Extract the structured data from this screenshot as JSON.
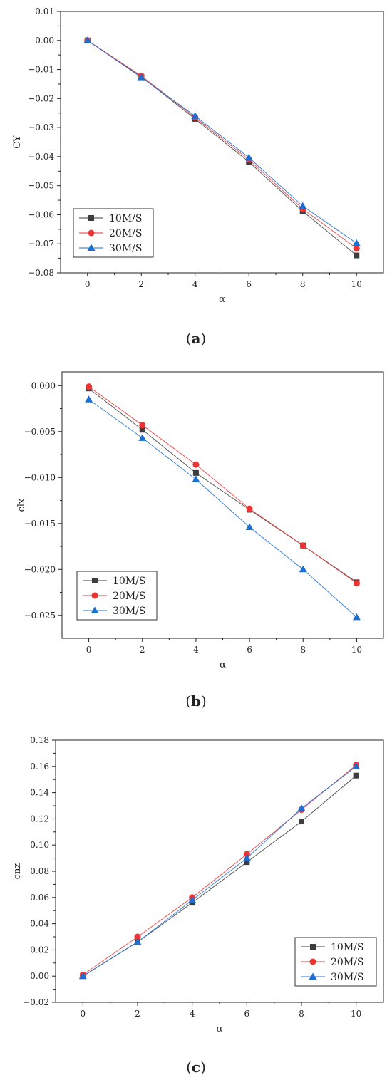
{
  "chart_data": [
    {
      "type": "line",
      "caption": "(a)",
      "caption_letter": "a",
      "xlabel": "α",
      "ylabel": "CY",
      "xlim": [
        -1,
        11
      ],
      "ylim": [
        -0.08,
        0.01
      ],
      "xticks": [
        0,
        2,
        4,
        6,
        8,
        10
      ],
      "xtick_labels": [
        "0",
        "2",
        "4",
        "6",
        "8",
        "10"
      ],
      "yticks": [
        0.01,
        0.0,
        -0.01,
        -0.02,
        -0.03,
        -0.04,
        -0.05,
        -0.06,
        -0.07,
        -0.08
      ],
      "ytick_labels": [
        "0.01",
        "0.00",
        "−0.01",
        "−0.02",
        "−0.03",
        "−0.04",
        "−0.05",
        "−0.06",
        "−0.07",
        "−0.08"
      ],
      "legend_position": "bottom-left",
      "x": [
        0,
        2,
        4,
        6,
        8,
        10
      ],
      "series": [
        {
          "name": "10M/S",
          "marker": "square",
          "color": "#3d3d3d",
          "values": [
            0.0,
            -0.0125,
            -0.027,
            -0.0418,
            -0.0588,
            -0.074
          ]
        },
        {
          "name": "20M/S",
          "marker": "circle",
          "color": "#ee3333",
          "values": [
            0.0,
            -0.0122,
            -0.0265,
            -0.041,
            -0.058,
            -0.0716
          ]
        },
        {
          "name": "30M/S",
          "marker": "triangle",
          "color": "#1a6fd1",
          "values": [
            0.0,
            -0.0127,
            -0.026,
            -0.0403,
            -0.057,
            -0.0698
          ]
        }
      ]
    },
    {
      "type": "line",
      "caption": "(b)",
      "caption_letter": "b",
      "xlabel": "α",
      "ylabel": "clx",
      "xlim": [
        -1,
        11
      ],
      "ylim": [
        -0.0275,
        0.0015
      ],
      "xticks": [
        0,
        2,
        4,
        6,
        8,
        10
      ],
      "xtick_labels": [
        "0",
        "2",
        "4",
        "6",
        "8",
        "10"
      ],
      "yticks": [
        0.0,
        -0.005,
        -0.01,
        -0.015,
        -0.02,
        -0.025
      ],
      "ytick_labels": [
        "0.000",
        "−0.005",
        "−0.010",
        "−0.015",
        "−0.020",
        "−0.025"
      ],
      "legend_position": "bottom-left",
      "x": [
        0,
        2,
        4,
        6,
        8,
        10
      ],
      "series": [
        {
          "name": "10M/S",
          "marker": "square",
          "color": "#3d3d3d",
          "values": [
            -0.0003,
            -0.0048,
            -0.0095,
            -0.0135,
            -0.0174,
            -0.0214
          ]
        },
        {
          "name": "20M/S",
          "marker": "circle",
          "color": "#ee3333",
          "values": [
            -0.0001,
            -0.0043,
            -0.0086,
            -0.0134,
            -0.0174,
            -0.0215
          ]
        },
        {
          "name": "30M/S",
          "marker": "triangle",
          "color": "#1a6fd1",
          "values": [
            -0.0015,
            -0.0057,
            -0.0102,
            -0.0154,
            -0.02,
            -0.0252
          ]
        }
      ]
    },
    {
      "type": "line",
      "caption": "(c)",
      "caption_letter": "c",
      "xlabel": "α",
      "ylabel": "cnz",
      "xlim": [
        -1,
        11
      ],
      "ylim": [
        -0.02,
        0.18
      ],
      "xticks": [
        0,
        2,
        4,
        6,
        8,
        10
      ],
      "xtick_labels": [
        "0",
        "2",
        "4",
        "6",
        "8",
        "10"
      ],
      "yticks": [
        0.18,
        0.16,
        0.14,
        0.12,
        0.1,
        0.08,
        0.06,
        0.04,
        0.02,
        0.0,
        -0.02
      ],
      "ytick_labels": [
        "0.18",
        "0.16",
        "0.14",
        "0.12",
        "0.10",
        "0.08",
        "0.06",
        "0.04",
        "0.02",
        "0.00",
        "−0.02"
      ],
      "legend_position": "bottom-right",
      "x": [
        0,
        2,
        4,
        6,
        8,
        10
      ],
      "series": [
        {
          "name": "10M/S",
          "marker": "square",
          "color": "#3d3d3d",
          "values": [
            0.0,
            0.026,
            0.056,
            0.087,
            0.118,
            0.153
          ]
        },
        {
          "name": "20M/S",
          "marker": "circle",
          "color": "#ee3333",
          "values": [
            0.001,
            0.03,
            0.06,
            0.093,
            0.127,
            0.161
          ]
        },
        {
          "name": "30M/S",
          "marker": "triangle",
          "color": "#1a6fd1",
          "values": [
            0.0,
            0.026,
            0.058,
            0.09,
            0.128,
            0.16
          ]
        }
      ]
    }
  ]
}
